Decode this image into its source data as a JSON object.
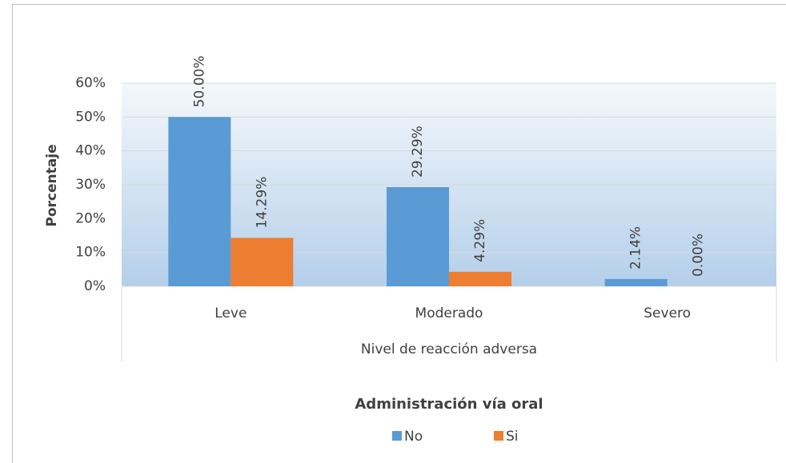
{
  "chart_data": {
    "type": "bar",
    "x_label": "Nivel de reacción adversa",
    "y_label": "Porcentaje",
    "legend_title": "Administración vía oral",
    "legend_position": "bottom",
    "categories": [
      "Leve",
      "Moderado",
      "Severo"
    ],
    "series": [
      {
        "name": "No",
        "color": "#5b9bd5",
        "values": [
          50,
          29.29,
          2.14
        ],
        "value_labels": [
          "50.00%",
          "29.29%",
          "2.14%"
        ]
      },
      {
        "name": "Si",
        "color": "#ed7d31",
        "values": [
          14.29,
          4.29,
          0
        ],
        "value_labels": [
          "14.29%",
          "4.29%",
          "0.00%"
        ]
      }
    ],
    "ylim": [
      0,
      60
    ],
    "yticks": [
      {
        "value": 0,
        "label": "0%"
      },
      {
        "value": 10,
        "label": "10%"
      },
      {
        "value": 20,
        "label": "20%"
      },
      {
        "value": 30,
        "label": "30%"
      },
      {
        "value": 40,
        "label": "40%"
      },
      {
        "value": 50,
        "label": "50%"
      },
      {
        "value": 60,
        "label": "60%"
      }
    ],
    "grid": true
  }
}
